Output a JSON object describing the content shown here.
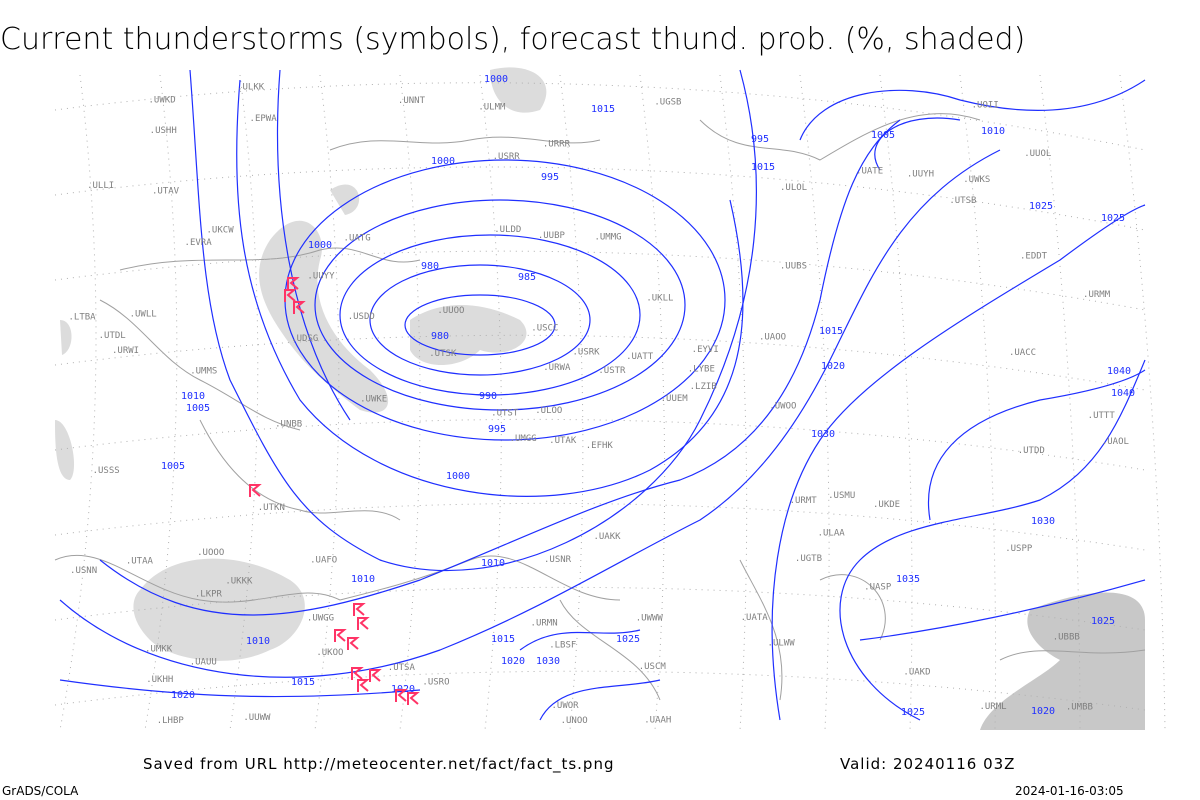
{
  "title": "Current thunderstorms (symbols), forecast thund. prob. (%, shaded)",
  "footer": {
    "source": "Saved from URL http://meteocenter.net/fact/fact_ts.png",
    "valid": "Valid: 20240116 03Z",
    "software": "GrADS/COLA",
    "timestamp": "2024-01-16-03:05"
  },
  "colors": {
    "isobar": "#1f2fff",
    "coast": "#a0a0a0",
    "shade": "#dcdcdc",
    "storm_symbol": "#ff3366",
    "station_text": "#808080"
  },
  "isobar_labels": [
    "980",
    "980",
    "985",
    "990",
    "995",
    "995",
    "1000",
    "1000",
    "1000",
    "1005",
    "1005",
    "1010",
    "1010",
    "1010",
    "1015",
    "1015",
    "1015",
    "1015",
    "1020",
    "1020",
    "1020",
    "1025",
    "1025",
    "1030",
    "1030",
    "1035",
    "1040",
    "1040",
    "1025",
    "1020",
    "1010",
    "1005",
    "995",
    "1000",
    "1010",
    "1015",
    "1025",
    "1030",
    "1020",
    "1025"
  ],
  "stations": [
    "EFHK",
    "EVRA",
    "ULOO",
    "UMKK",
    "EYVI",
    "UMMG",
    "ULOL",
    "UUEM",
    "EPWA",
    "UMBB",
    "UMMS",
    "UMGG",
    "UUBS",
    "UUWW",
    "UUBP",
    "UKLL",
    "UKKK",
    "UUOO",
    "UKHH",
    "UKOO",
    "UKDE",
    "UKCW",
    "URRR",
    "URWI",
    "URMT",
    "URMM",
    "URMN",
    "URWA",
    "UATG",
    "UATE",
    "URML",
    "UBBB",
    "UGSB",
    "UDSG",
    "UGTB",
    "LTBA",
    "LYBE",
    "LHBP",
    "LBSF",
    "LZIB",
    "LKPR",
    "EDDT",
    "ULLI",
    "ULAA",
    "ULWW",
    "UWGG",
    "UWKD",
    "UWWW",
    "UWKS",
    "UWKE",
    "UWLL",
    "UUYY",
    "UUYH",
    "ULKK",
    "USRR",
    "USRK",
    "USNN",
    "USNR",
    "USRO",
    "USMU",
    "USDD",
    "USHH",
    "USSS",
    "USCC",
    "USCM",
    "UATT",
    "UAUU",
    "UWOO",
    "UWOR",
    "UACC",
    "UAKK",
    "UAKD",
    "UAAH",
    "UATA",
    "UAOL",
    "UAOO",
    "UASP",
    "USTR",
    "USPP",
    "UNOO",
    "UNBB",
    "UNNT",
    "UTTT",
    "UTDL",
    "UTKN",
    "UAFO",
    "UTSA",
    "UTSB",
    "UTSK",
    "UTDD",
    "UTAV",
    "UTST",
    "UTAA",
    "UTAK",
    "UUOL",
    "ULDD",
    "ULMM",
    "UOOO",
    "UOII",
    "ULOO2"
  ]
}
